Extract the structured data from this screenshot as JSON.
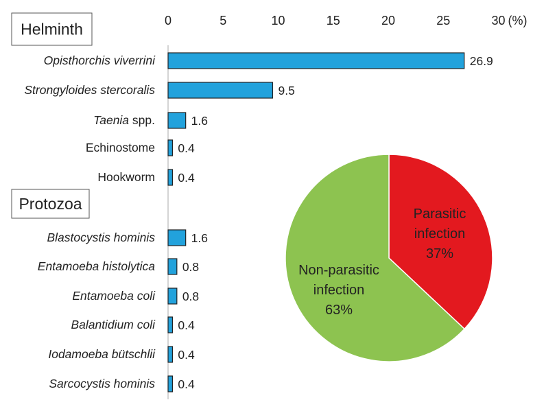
{
  "chart_data": [
    {
      "type": "bar",
      "orientation": "horizontal",
      "xlim": [
        0,
        30
      ],
      "xticks": [
        "0",
        "5",
        "10",
        "15",
        "20",
        "25",
        "30"
      ],
      "unit_label": "(%)",
      "groups": [
        {
          "name": "Helminth",
          "items": [
            {
              "label": "Opisthorchis viverrini",
              "italic": "Opisthorchis viverrini",
              "plain": "",
              "value": 26.9
            },
            {
              "label": "Strongyloides stercoralis",
              "italic": "Strongyloides stercoralis",
              "plain": "",
              "value": 9.5
            },
            {
              "label": "Taenia spp.",
              "italic": "Taenia",
              "plain": " spp.",
              "value": 1.6
            },
            {
              "label": "Echinostome",
              "italic": "",
              "plain": "Echinostome",
              "value": 0.4
            },
            {
              "label": "Hookworm",
              "italic": "",
              "plain": "Hookworm",
              "value": 0.4
            }
          ]
        },
        {
          "name": "Protozoa",
          "items": [
            {
              "label": "Blastocystis hominis",
              "italic": "Blastocystis hominis",
              "plain": "",
              "value": 1.6
            },
            {
              "label": "Entamoeba histolytica",
              "italic": "Entamoeba histolytica",
              "plain": "",
              "value": 0.8
            },
            {
              "label": "Entamoeba coli",
              "italic": "Entamoeba coli",
              "plain": "",
              "value": 0.8
            },
            {
              "label": "Balantidium coli",
              "italic": "Balantidium coli",
              "plain": "",
              "value": 0.4
            },
            {
              "label": "Iodamoeba bütschlii",
              "italic": "Iodamoeba bütschlii",
              "plain": "",
              "value": 0.4
            },
            {
              "label": "Sarcocystis hominis",
              "italic": "Sarcocystis hominis",
              "plain": "",
              "value": 0.4
            }
          ]
        }
      ],
      "bar_color": "#22a2dc"
    },
    {
      "type": "pie",
      "slices": [
        {
          "label_lines": [
            "Parasitic",
            "infection",
            "37%"
          ],
          "value": 37,
          "color": "#e3191f"
        },
        {
          "label_lines": [
            "Non-parasitic",
            "infection",
            "63%"
          ],
          "value": 63,
          "color": "#8dc350"
        }
      ]
    }
  ]
}
